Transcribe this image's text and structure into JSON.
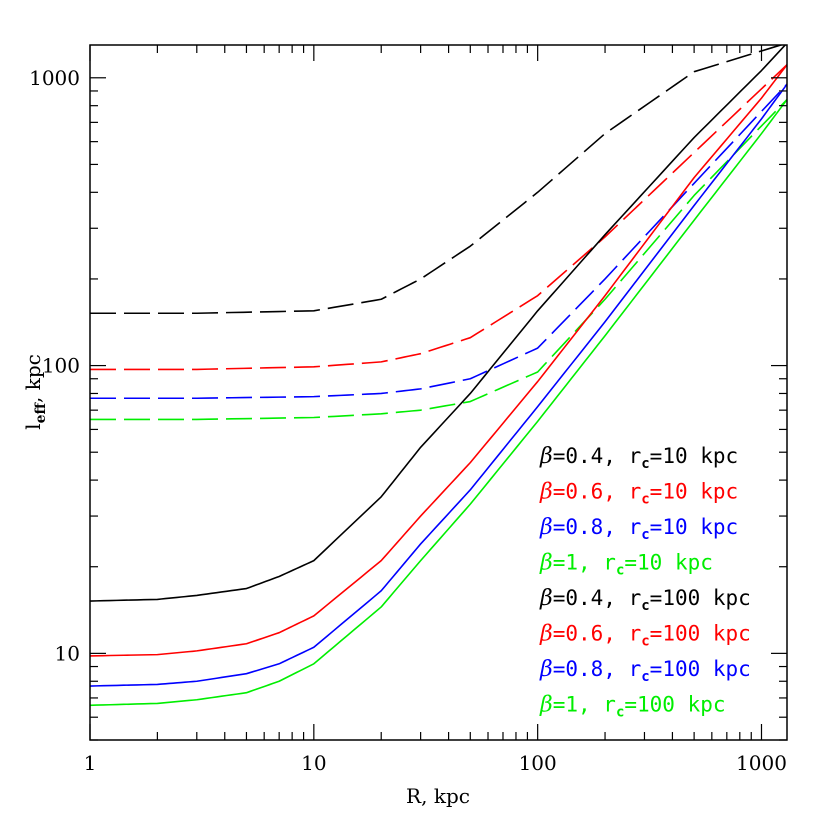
{
  "chart_data": {
    "type": "line",
    "xscale": "log",
    "yscale": "log",
    "xlabel": "R, kpc",
    "ylabel": {
      "main": "l",
      "sub": "eff",
      "rest": ", kpc"
    },
    "xlim": [
      1,
      1300
    ],
    "ylim": [
      5,
      1300
    ],
    "xticks": [
      {
        "value": 1,
        "label": "1"
      },
      {
        "value": 10,
        "label": "10"
      },
      {
        "value": 100,
        "label": "100"
      },
      {
        "value": 1000,
        "label": "1000"
      }
    ],
    "yticks": [
      {
        "value": 10,
        "label": "10"
      },
      {
        "value": 100,
        "label": "100"
      },
      {
        "value": 1000,
        "label": "1000"
      }
    ],
    "grid": false,
    "legend_position": "bottom-right",
    "series": [
      {
        "beta": "0.4",
        "rc": "10",
        "name_prefix": "=0.4, r",
        "name_suffix": "=10 kpc",
        "color": "#000000",
        "dash": true,
        "points": [
          [
            1,
            152
          ],
          [
            3,
            152
          ],
          [
            10,
            155
          ],
          [
            20,
            170
          ],
          [
            30,
            200
          ],
          [
            50,
            260
          ],
          [
            100,
            400
          ],
          [
            200,
            640
          ],
          [
            500,
            1050
          ],
          [
            1300,
            1320
          ]
        ]
      },
      {
        "beta": "0.6",
        "rc": "10",
        "name_prefix": "=0.6, r",
        "name_suffix": "=10 kpc",
        "color": "#ff0000",
        "dash": true,
        "points": [
          [
            1,
            97
          ],
          [
            3,
            97
          ],
          [
            10,
            99
          ],
          [
            20,
            103
          ],
          [
            30,
            110
          ],
          [
            50,
            125
          ],
          [
            100,
            175
          ],
          [
            200,
            280
          ],
          [
            500,
            550
          ],
          [
            1300,
            1110
          ]
        ]
      },
      {
        "beta": "0.8",
        "rc": "10",
        "name_prefix": "=0.8, r",
        "name_suffix": "=10 kpc",
        "color": "#0000ff",
        "dash": true,
        "points": [
          [
            1,
            77
          ],
          [
            3,
            77
          ],
          [
            10,
            78
          ],
          [
            20,
            80
          ],
          [
            30,
            83
          ],
          [
            50,
            90
          ],
          [
            100,
            115
          ],
          [
            200,
            200
          ],
          [
            500,
            430
          ],
          [
            1300,
            950
          ]
        ]
      },
      {
        "beta": "1",
        "rc": "10",
        "name_prefix": "=1, r",
        "name_suffix": "=10 kpc",
        "color": "#00ee00",
        "dash": true,
        "points": [
          [
            1,
            65
          ],
          [
            3,
            65
          ],
          [
            10,
            66
          ],
          [
            20,
            68
          ],
          [
            30,
            70
          ],
          [
            50,
            75
          ],
          [
            100,
            95
          ],
          [
            200,
            170
          ],
          [
            500,
            390
          ],
          [
            1300,
            840
          ]
        ]
      },
      {
        "beta": "0.4",
        "rc": "100",
        "name_prefix": "=0.4, r",
        "name_suffix": "=100 kpc",
        "color": "#000000",
        "dash": false,
        "points": [
          [
            1,
            15.2
          ],
          [
            2,
            15.4
          ],
          [
            3,
            15.9
          ],
          [
            5,
            16.8
          ],
          [
            7,
            18.5
          ],
          [
            10,
            21
          ],
          [
            20,
            35
          ],
          [
            30,
            52
          ],
          [
            50,
            80
          ],
          [
            100,
            155
          ],
          [
            200,
            285
          ],
          [
            500,
            620
          ],
          [
            1000,
            1060
          ],
          [
            1300,
            1320
          ]
        ]
      },
      {
        "beta": "0.6",
        "rc": "100",
        "name_prefix": "=0.6, r",
        "name_suffix": "=100 kpc",
        "color": "#ff0000",
        "dash": false,
        "points": [
          [
            1,
            9.8
          ],
          [
            2,
            9.9
          ],
          [
            3,
            10.2
          ],
          [
            5,
            10.8
          ],
          [
            7,
            11.8
          ],
          [
            10,
            13.5
          ],
          [
            20,
            21
          ],
          [
            30,
            30
          ],
          [
            50,
            46
          ],
          [
            100,
            88
          ],
          [
            200,
            175
          ],
          [
            500,
            450
          ],
          [
            1000,
            850
          ],
          [
            1300,
            1110
          ]
        ]
      },
      {
        "beta": "0.8",
        "rc": "100",
        "name_prefix": "=0.8, r",
        "name_suffix": "=100 kpc",
        "color": "#0000ff",
        "dash": false,
        "points": [
          [
            1,
            7.7
          ],
          [
            2,
            7.8
          ],
          [
            3,
            8.0
          ],
          [
            5,
            8.5
          ],
          [
            7,
            9.2
          ],
          [
            10,
            10.5
          ],
          [
            20,
            16.5
          ],
          [
            30,
            24
          ],
          [
            50,
            37
          ],
          [
            100,
            72
          ],
          [
            200,
            142
          ],
          [
            500,
            360
          ],
          [
            1000,
            720
          ],
          [
            1300,
            950
          ]
        ]
      },
      {
        "beta": "1",
        "rc": "100",
        "name_prefix": "=1, r",
        "name_suffix": "=100 kpc",
        "color": "#00ee00",
        "dash": false,
        "points": [
          [
            1,
            6.6
          ],
          [
            2,
            6.7
          ],
          [
            3,
            6.9
          ],
          [
            5,
            7.3
          ],
          [
            7,
            8.0
          ],
          [
            10,
            9.2
          ],
          [
            20,
            14.5
          ],
          [
            30,
            21
          ],
          [
            50,
            33
          ],
          [
            100,
            64
          ],
          [
            200,
            127
          ],
          [
            500,
            320
          ],
          [
            1000,
            640
          ],
          [
            1300,
            840
          ]
        ]
      }
    ]
  }
}
